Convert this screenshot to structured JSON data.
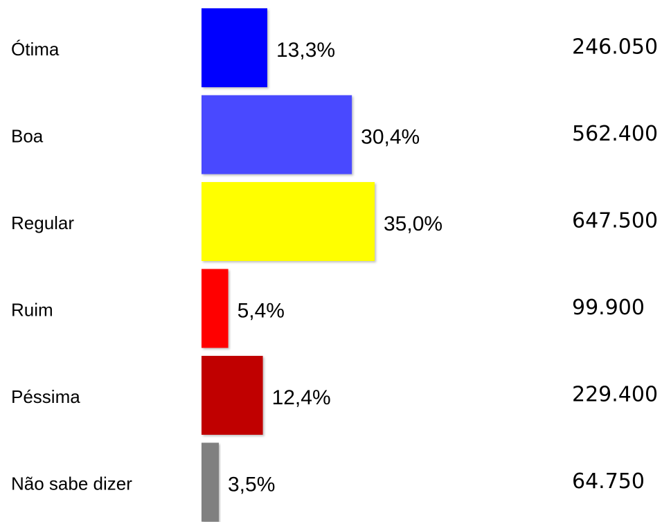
{
  "chart_data": {
    "type": "bar",
    "orientation": "horizontal",
    "categories": [
      "Ótima",
      "Boa",
      "Regular",
      "Ruim",
      "Péssima",
      "Não sabe dizer"
    ],
    "values": [
      13.3,
      30.4,
      35.0,
      5.4,
      12.4,
      3.5
    ],
    "value_labels": [
      "13,3%",
      "30,4%",
      "35,0%",
      "5,4%",
      "12,4%",
      "3,5%"
    ],
    "colors": [
      "#0000ff",
      "#4848ff",
      "#ffff00",
      "#ff0000",
      "#c00000",
      "#808080"
    ],
    "totals": [
      246050,
      562400,
      647500,
      99900,
      229400,
      64750
    ],
    "total_labels": [
      "246.050",
      "562.400",
      "647.500",
      "99.900",
      "229.400",
      "64.750"
    ]
  }
}
